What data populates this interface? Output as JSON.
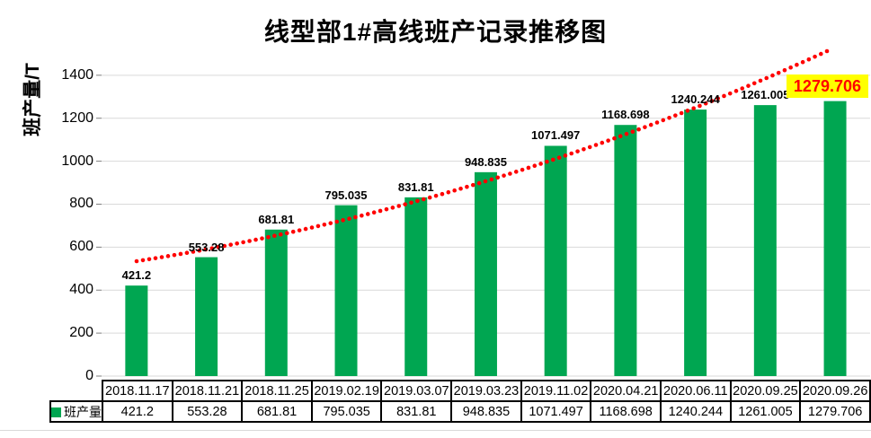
{
  "title": "线型部1#高线班产记录推移图",
  "y_axis": {
    "label": "班产量/T"
  },
  "legend": {
    "label": "班产量"
  },
  "chart_data": {
    "type": "bar",
    "title": "线型部1#高线班产记录推移图",
    "ylabel": "班产量/T",
    "xlabel": "",
    "categories": [
      "2018.11.17",
      "2018.11.21",
      "2018.11.25",
      "2019.02.19",
      "2019.03.07",
      "2019.03.23",
      "2019.11.02",
      "2020.04.21",
      "2020.06.11",
      "2020.09.25",
      "2020.09.26"
    ],
    "series": [
      {
        "name": "班产量",
        "color": "#00A651",
        "values": [
          421.2,
          553.28,
          681.81,
          795.035,
          831.81,
          948.835,
          1071.497,
          1168.698,
          1240.244,
          1261.005,
          1279.706
        ]
      }
    ],
    "data_labels": [
      "421.2",
      "553.28",
      "681.81",
      "795.035",
      "831.81",
      "948.835",
      "1071.497",
      "1168.698",
      "1240.244",
      "1261.005",
      "1279.706"
    ],
    "highlighted_point": {
      "index": 10,
      "label": "1279.706",
      "background": "#FFFF00",
      "text_color": "#FF0000"
    },
    "yticks": [
      0,
      200,
      400,
      600,
      800,
      1000,
      1200,
      1400
    ],
    "ylim": [
      0,
      1500
    ],
    "grid": true,
    "gridline_color": "#D9D9D9",
    "tickmark_color": "#7F7F7F",
    "trendline": {
      "type": "polynomial",
      "style": "dotted",
      "color": "#FF0000"
    },
    "data_table": {
      "shown": true,
      "legend_key": true
    },
    "legend_position": "data-table-left"
  }
}
